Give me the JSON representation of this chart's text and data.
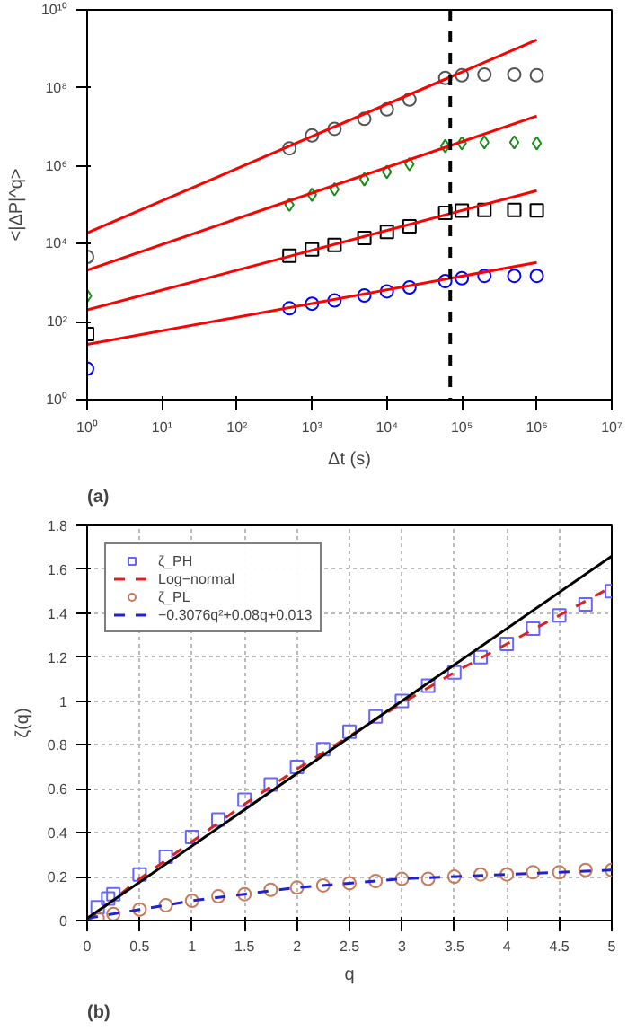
{
  "chart_data": [
    {
      "type": "scatter",
      "xlabel": "Δt (s)",
      "ylabel": "<|ΔP|^q>",
      "annotations": [
        "(a)"
      ],
      "log": "xy",
      "grid": false,
      "xlim": [
        1,
        10000000
      ],
      "ylim": [
        1,
        10000000000
      ],
      "xticks": [
        {
          "value": 1,
          "label": "10⁰"
        },
        {
          "value": 10,
          "label": "10¹"
        },
        {
          "value": 100,
          "label": "10²"
        },
        {
          "value": 1000,
          "label": "10³"
        },
        {
          "value": 10000,
          "label": "10⁴"
        },
        {
          "value": 100000,
          "label": "10⁵"
        },
        {
          "value": 1000000,
          "label": "10⁶"
        },
        {
          "value": 10000000,
          "label": "10⁷"
        }
      ],
      "yticks": [
        {
          "value": 1,
          "label": "10⁰"
        },
        {
          "value": 100,
          "label": "10²"
        },
        {
          "value": 10000,
          "label": "10⁴"
        },
        {
          "value": 1000000,
          "label": "10⁶"
        },
        {
          "value": 100000000,
          "label": "10⁸"
        },
        {
          "value": 10000000000,
          "label": "10¹⁰"
        }
      ],
      "ref_lines": [
        {
          "axis": "x",
          "value": 70000,
          "color": "#000000",
          "line_style": "dashed"
        }
      ],
      "series": [
        {
          "marker": "circle",
          "color": "#555555",
          "x": [
            1,
            500,
            1000,
            2000,
            5000,
            10000,
            20000,
            60000,
            100000,
            200000,
            500000,
            1000000
          ],
          "values": [
            4600,
            2800000,
            6000000,
            8900000,
            16000000,
            28000000,
            50000000,
            180000000,
            210000000,
            220000000,
            220000000,
            210000000
          ]
        },
        {
          "marker": "diamond",
          "color": "#1a8a1a",
          "x": [
            1,
            500,
            1000,
            2000,
            5000,
            10000,
            20000,
            60000,
            100000,
            200000,
            500000,
            1000000
          ],
          "values": [
            460,
            100000,
            180000,
            250000,
            450000,
            700000,
            1100000,
            3200000,
            3800000,
            4000000,
            4000000,
            3800000
          ]
        },
        {
          "marker": "square",
          "color": "#000000",
          "x": [
            1,
            500,
            1000,
            2000,
            5000,
            10000,
            20000,
            60000,
            100000,
            200000,
            500000,
            1000000
          ],
          "values": [
            48,
            4900,
            7100,
            9300,
            14000,
            20000,
            28000,
            62000,
            71000,
            74000,
            74000,
            72000
          ]
        },
        {
          "marker": "circle",
          "color": "#0000ff",
          "x": [
            1,
            500,
            1000,
            2000,
            5000,
            10000,
            20000,
            60000,
            100000,
            200000,
            500000,
            1000000
          ],
          "values": [
            6.2,
            220,
            290,
            350,
            470,
            600,
            760,
            1100,
            1300,
            1500,
            1500,
            1500
          ]
        },
        {
          "type": "line",
          "line_style": "solid",
          "color": "#ff0000",
          "x": [
            1,
            1000000
          ],
          "values": [
            19000,
            1700000000
          ]
        },
        {
          "type": "line",
          "line_style": "solid",
          "color": "#ff0000",
          "x": [
            1,
            1000000
          ],
          "values": [
            2100,
            19000000
          ]
        },
        {
          "type": "line",
          "line_style": "solid",
          "color": "#ff0000",
          "x": [
            1,
            1000000
          ],
          "values": [
            200,
            230000
          ]
        },
        {
          "type": "line",
          "line_style": "solid",
          "color": "#ff0000",
          "x": [
            1,
            1000000
          ],
          "values": [
            26,
            3300
          ]
        }
      ]
    },
    {
      "type": "scatter",
      "xlabel": "q",
      "ylabel": "ζ(q)",
      "annotations": [
        "(b)"
      ],
      "grid": true,
      "legend": "top left",
      "xlim": [
        0,
        5
      ],
      "ylim": [
        0,
        1.8
      ],
      "xticks": [
        0,
        0.5,
        1,
        1.5,
        2,
        2.5,
        3,
        3.5,
        4,
        4.5,
        5
      ],
      "yticks": [
        0,
        0.2,
        0.4,
        0.6,
        0.8,
        1,
        1.2,
        1.4,
        1.6,
        1.8
      ],
      "series": [
        {
          "name": "ζ_PH",
          "marker": "square",
          "color": "#6666ff",
          "x": [
            0.1,
            0.2,
            0.25,
            0.5,
            0.75,
            1,
            1.25,
            1.5,
            1.75,
            2,
            2.25,
            2.5,
            2.75,
            3,
            3.25,
            3.5,
            3.75,
            4,
            4.25,
            4.5,
            4.75,
            5
          ],
          "values": [
            0.06,
            0.1,
            0.12,
            0.21,
            0.29,
            0.38,
            0.46,
            0.55,
            0.62,
            0.7,
            0.78,
            0.86,
            0.93,
            1.0,
            1.07,
            1.13,
            1.2,
            1.26,
            1.33,
            1.39,
            1.44,
            1.5
          ]
        },
        {
          "type": "line",
          "name": "Log−normal",
          "line_style": "dashed",
          "color": "#dd2222",
          "x": [
            0,
            0.5,
            1,
            1.5,
            2,
            2.5,
            3,
            3.5,
            4,
            4.5,
            5
          ],
          "values": [
            0,
            0.19,
            0.36,
            0.53,
            0.69,
            0.84,
            0.99,
            1.13,
            1.26,
            1.39,
            1.52
          ]
        },
        {
          "name": "ζ_PL",
          "marker": "circle",
          "color": "#c87a5a",
          "x": [
            0.1,
            0.25,
            0.5,
            0.75,
            1,
            1.25,
            1.5,
            1.75,
            2,
            2.25,
            2.5,
            2.75,
            3,
            3.25,
            3.5,
            3.75,
            4,
            4.25,
            4.5,
            4.75,
            5
          ],
          "values": [
            0.01,
            0.03,
            0.05,
            0.07,
            0.09,
            0.11,
            0.12,
            0.14,
            0.15,
            0.16,
            0.17,
            0.18,
            0.19,
            0.19,
            0.2,
            0.21,
            0.21,
            0.22,
            0.22,
            0.23,
            0.23
          ]
        },
        {
          "type": "line",
          "name": "−0.3076q²+0.08q+0.013",
          "line_style": "dashed",
          "color": "#2222cc",
          "x": [
            0,
            0.5,
            1,
            1.5,
            2,
            2.5,
            3,
            3.5,
            4,
            4.5,
            5
          ],
          "values": [
            0.01,
            0.05,
            0.09,
            0.12,
            0.15,
            0.17,
            0.19,
            0.2,
            0.21,
            0.22,
            0.23
          ]
        },
        {
          "type": "line",
          "line_style": "solid",
          "color": "#000000",
          "x": [
            0,
            5
          ],
          "values": [
            0.01,
            1.66
          ]
        }
      ]
    }
  ]
}
